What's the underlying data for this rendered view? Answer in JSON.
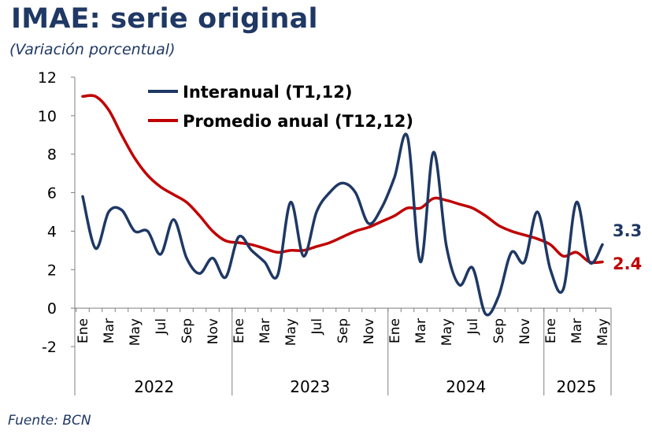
{
  "header": {
    "title": "IMAE: serie original",
    "subtitle": "(Variación porcentual)"
  },
  "footer": {
    "source": "Fuente: BCN"
  },
  "colors": {
    "interanual": "#1f3864",
    "promedio": "#c00000",
    "title": "#1f3864"
  },
  "chart_data": {
    "type": "line",
    "title": "IMAE: serie original",
    "subtitle": "(Variación porcentual)",
    "xlabel": "",
    "ylabel": "",
    "ylim": [
      -2,
      12
    ],
    "yticks": [
      "12",
      "10",
      "8",
      "6",
      "4",
      "2",
      "0",
      "-2"
    ],
    "grid": false,
    "legend_position": "top-left",
    "x": [
      "2022-01",
      "2022-02",
      "2022-03",
      "2022-04",
      "2022-05",
      "2022-06",
      "2022-07",
      "2022-08",
      "2022-09",
      "2022-10",
      "2022-11",
      "2022-12",
      "2023-01",
      "2023-02",
      "2023-03",
      "2023-04",
      "2023-05",
      "2023-06",
      "2023-07",
      "2023-08",
      "2023-09",
      "2023-10",
      "2023-11",
      "2023-12",
      "2024-01",
      "2024-02",
      "2024-03",
      "2024-04",
      "2024-05",
      "2024-06",
      "2024-07",
      "2024-08",
      "2024-09",
      "2024-10",
      "2024-11",
      "2024-12",
      "2025-01",
      "2025-02",
      "2025-03",
      "2025-04",
      "2025-05"
    ],
    "month_labels": [
      "Ene",
      "Mar",
      "May",
      "Jul",
      "Sep",
      "Nov",
      "Ene",
      "Mar",
      "May",
      "Jul",
      "Sep",
      "Nov",
      "Ene",
      "Mar",
      "May",
      "Jul",
      "Sep",
      "Nov",
      "Ene",
      "Mar",
      "May"
    ],
    "years": [
      "2022",
      "2023",
      "2024",
      "2025"
    ],
    "series": [
      {
        "name": "Interanual (T1,12)",
        "color": "#1f3864",
        "values": [
          5.8,
          3.1,
          5.0,
          5.1,
          4.0,
          4.0,
          2.8,
          4.6,
          2.6,
          1.8,
          2.6,
          1.6,
          3.7,
          3.0,
          2.4,
          1.7,
          5.5,
          2.7,
          5.0,
          6.0,
          6.5,
          6.0,
          4.4,
          5.2,
          6.8,
          8.9,
          2.4,
          8.1,
          3.2,
          1.2,
          2.1,
          -0.3,
          0.6,
          2.9,
          2.4,
          5.0,
          2.0,
          1.0,
          5.5,
          2.4,
          3.3
        ],
        "end_label": "3.3"
      },
      {
        "name": "Promedio anual (T12,12)",
        "color": "#c00000",
        "values": [
          11.0,
          11.0,
          10.3,
          9.0,
          7.8,
          6.9,
          6.3,
          5.9,
          5.5,
          4.8,
          4.0,
          3.5,
          3.4,
          3.3,
          3.1,
          2.9,
          3.0,
          3.0,
          3.2,
          3.4,
          3.7,
          4.0,
          4.2,
          4.5,
          4.8,
          5.2,
          5.2,
          5.7,
          5.6,
          5.4,
          5.2,
          4.8,
          4.3,
          4.0,
          3.8,
          3.6,
          3.3,
          2.7,
          2.9,
          2.4,
          2.4
        ],
        "end_label": "2.4"
      }
    ]
  }
}
